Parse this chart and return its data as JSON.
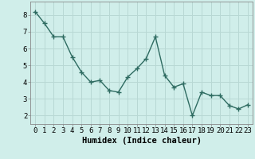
{
  "x": [
    0,
    1,
    2,
    3,
    4,
    5,
    6,
    7,
    8,
    9,
    10,
    11,
    12,
    13,
    14,
    15,
    16,
    17,
    18,
    19,
    20,
    21,
    22,
    23
  ],
  "y": [
    8.2,
    7.5,
    6.7,
    6.7,
    5.5,
    4.6,
    4.0,
    4.1,
    3.5,
    3.4,
    4.3,
    4.8,
    5.4,
    6.7,
    4.4,
    3.7,
    3.9,
    2.0,
    3.4,
    3.2,
    3.2,
    2.6,
    2.4,
    2.65
  ],
  "line_color": "#2e6b61",
  "marker_color": "#2e6b61",
  "bg_color": "#d0eeea",
  "grid_color": "#b8d8d4",
  "xlabel": "Humidex (Indice chaleur)",
  "ylim": [
    1.5,
    8.8
  ],
  "xlim": [
    -0.5,
    23.5
  ],
  "yticks": [
    2,
    3,
    4,
    5,
    6,
    7,
    8
  ],
  "xticks": [
    0,
    1,
    2,
    3,
    4,
    5,
    6,
    7,
    8,
    9,
    10,
    11,
    12,
    13,
    14,
    15,
    16,
    17,
    18,
    19,
    20,
    21,
    22,
    23
  ],
  "xlabel_fontsize": 7.5,
  "tick_fontsize": 6.5,
  "line_width": 1.0,
  "marker_size": 2.5
}
